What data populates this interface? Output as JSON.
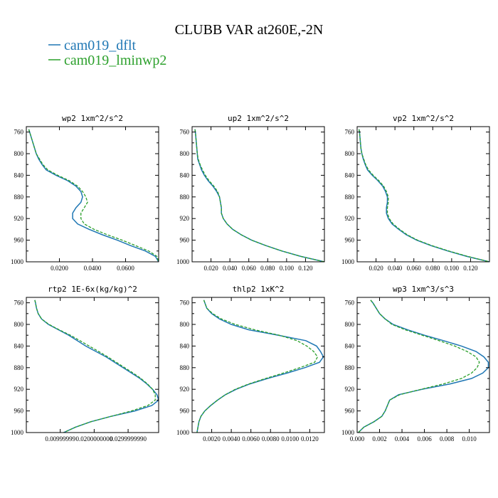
{
  "suptitle": "CLUBB VAR at260E,-2N",
  "legend": [
    {
      "name": "cam019_dflt",
      "color": "#1f77b4",
      "dash": "solid"
    },
    {
      "name": "cam019_lminwp2",
      "color": "#2ca02c",
      "dash": "dashed"
    }
  ],
  "chart_data": [
    {
      "type": "line",
      "title": "wp2   1xm^2/s^2",
      "ylim": [
        1000,
        750
      ],
      "yticks": [
        760,
        800,
        840,
        880,
        920,
        960,
        1000
      ],
      "xlim": [
        0,
        0.08
      ],
      "xticks": [
        0.02,
        0.04,
        0.06
      ],
      "xtick_labels": [
        "0.0200",
        "0.0400",
        "0.0600"
      ],
      "y": [
        755,
        760,
        770,
        780,
        790,
        800,
        810,
        820,
        830,
        840,
        850,
        860,
        870,
        880,
        890,
        900,
        910,
        920,
        930,
        940,
        950,
        960,
        970,
        980,
        990,
        1000
      ],
      "series": [
        {
          "name": "cam019_dflt",
          "values": [
            0.0015,
            0.002,
            0.003,
            0.004,
            0.005,
            0.006,
            0.0075,
            0.0095,
            0.012,
            0.018,
            0.025,
            0.03,
            0.033,
            0.034,
            0.033,
            0.03,
            0.028,
            0.028,
            0.031,
            0.038,
            0.046,
            0.055,
            0.063,
            0.072,
            0.078,
            0.08
          ]
        },
        {
          "name": "cam019_lminwp2",
          "values": [
            0.0015,
            0.002,
            0.003,
            0.004,
            0.005,
            0.006,
            0.008,
            0.01,
            0.013,
            0.019,
            0.026,
            0.031,
            0.034,
            0.036,
            0.037,
            0.035,
            0.033,
            0.033,
            0.035,
            0.041,
            0.049,
            0.058,
            0.066,
            0.074,
            0.079,
            0.08
          ]
        }
      ]
    },
    {
      "type": "line",
      "title": "up2   1xm^2/s^2",
      "ylim": [
        1000,
        750
      ],
      "yticks": [
        760,
        800,
        840,
        880,
        920,
        960,
        1000
      ],
      "xlim": [
        0,
        0.14
      ],
      "xticks": [
        0.02,
        0.04,
        0.06,
        0.08,
        0.1,
        0.12
      ],
      "xtick_labels": [
        "0.020",
        "0.040",
        "0.060",
        "0.080",
        "0.100",
        "0.120"
      ],
      "y": [
        755,
        760,
        770,
        780,
        790,
        800,
        810,
        820,
        830,
        840,
        850,
        860,
        870,
        880,
        890,
        900,
        910,
        920,
        930,
        940,
        950,
        960,
        970,
        980,
        990,
        1000
      ],
      "series": [
        {
          "name": "cam019_dflt",
          "values": [
            0.003,
            0.0035,
            0.004,
            0.0045,
            0.005,
            0.0055,
            0.006,
            0.008,
            0.01,
            0.013,
            0.017,
            0.022,
            0.026,
            0.029,
            0.03,
            0.031,
            0.031,
            0.033,
            0.037,
            0.043,
            0.052,
            0.063,
            0.078,
            0.095,
            0.115,
            0.14
          ]
        },
        {
          "name": "cam019_lminwp2",
          "values": [
            0.003,
            0.0035,
            0.004,
            0.0045,
            0.005,
            0.0055,
            0.0065,
            0.0085,
            0.011,
            0.014,
            0.018,
            0.023,
            0.027,
            0.029,
            0.03,
            0.031,
            0.031,
            0.033,
            0.037,
            0.043,
            0.052,
            0.063,
            0.078,
            0.095,
            0.115,
            0.14
          ]
        }
      ]
    },
    {
      "type": "line",
      "title": "vp2   1xm^2/s^2",
      "ylim": [
        1000,
        750
      ],
      "yticks": [
        760,
        800,
        840,
        880,
        920,
        960,
        1000
      ],
      "xlim": [
        0,
        0.14
      ],
      "xticks": [
        0.02,
        0.04,
        0.06,
        0.08,
        0.1,
        0.12
      ],
      "xtick_labels": [
        "0.020",
        "0.040",
        "0.060",
        "0.080",
        "0.100",
        "0.120"
      ],
      "y": [
        755,
        760,
        770,
        780,
        790,
        800,
        810,
        820,
        830,
        840,
        850,
        860,
        870,
        880,
        890,
        900,
        910,
        920,
        930,
        940,
        950,
        960,
        970,
        980,
        990,
        1000
      ],
      "series": [
        {
          "name": "cam019_dflt",
          "values": [
            0.002,
            0.0025,
            0.003,
            0.0035,
            0.004,
            0.005,
            0.0065,
            0.0085,
            0.011,
            0.016,
            0.022,
            0.027,
            0.03,
            0.032,
            0.032,
            0.031,
            0.031,
            0.033,
            0.037,
            0.044,
            0.052,
            0.063,
            0.078,
            0.096,
            0.116,
            0.14
          ]
        },
        {
          "name": "cam019_lminwp2",
          "values": [
            0.002,
            0.0025,
            0.003,
            0.0035,
            0.004,
            0.005,
            0.007,
            0.009,
            0.012,
            0.017,
            0.023,
            0.028,
            0.031,
            0.033,
            0.033,
            0.032,
            0.032,
            0.034,
            0.038,
            0.045,
            0.053,
            0.064,
            0.079,
            0.097,
            0.117,
            0.14
          ]
        }
      ]
    },
    {
      "type": "line",
      "title": "rtp2   1E-6x(kg/kg)^2",
      "ylim": [
        1000,
        750
      ],
      "yticks": [
        760,
        800,
        840,
        880,
        920,
        960,
        1000
      ],
      "xlim": [
        0,
        0.039
      ],
      "xticks": [
        0.01,
        0.02,
        0.03
      ],
      "xtick_labels": [
        "0.00999999",
        "0.0200000000",
        "0.0299999990"
      ],
      "y": [
        755,
        760,
        770,
        780,
        790,
        800,
        810,
        820,
        830,
        840,
        850,
        860,
        870,
        880,
        890,
        900,
        910,
        920,
        930,
        940,
        950,
        960,
        970,
        980,
        990,
        1000
      ],
      "series": [
        {
          "name": "cam019_dflt",
          "values": [
            0.0025,
            0.0027,
            0.003,
            0.0035,
            0.0045,
            0.0065,
            0.0095,
            0.0125,
            0.015,
            0.0175,
            0.0205,
            0.0235,
            0.026,
            0.0285,
            0.031,
            0.0335,
            0.0355,
            0.0372,
            0.0385,
            0.039,
            0.037,
            0.032,
            0.025,
            0.019,
            0.0145,
            0.011
          ]
        },
        {
          "name": "cam019_lminwp2",
          "values": [
            0.0025,
            0.0027,
            0.003,
            0.0035,
            0.0045,
            0.0067,
            0.0097,
            0.013,
            0.0158,
            0.0185,
            0.0213,
            0.024,
            0.0265,
            0.029,
            0.0315,
            0.0338,
            0.0357,
            0.0372,
            0.038,
            0.038,
            0.0358,
            0.031,
            0.025,
            0.019,
            0.0145,
            0.011
          ]
        }
      ]
    },
    {
      "type": "line",
      "title": "thlp2   1xK^2",
      "ylim": [
        1000,
        750
      ],
      "yticks": [
        760,
        800,
        840,
        880,
        920,
        960,
        1000
      ],
      "xlim": [
        0,
        0.0135
      ],
      "xticks": [
        0.002,
        0.004,
        0.006,
        0.008,
        0.01,
        0.012
      ],
      "xtick_labels": [
        "0.0020",
        "0.0040",
        "0.0060",
        "0.0080",
        "0.0100",
        "0.0120"
      ],
      "y": [
        755,
        760,
        770,
        780,
        790,
        800,
        810,
        820,
        830,
        840,
        850,
        860,
        870,
        880,
        890,
        900,
        910,
        920,
        930,
        940,
        950,
        960,
        970,
        980,
        990,
        1000
      ],
      "series": [
        {
          "name": "cam019_dflt",
          "values": [
            0.0012,
            0.0013,
            0.0015,
            0.002,
            0.0028,
            0.004,
            0.0058,
            0.0088,
            0.0116,
            0.0127,
            0.0131,
            0.0134,
            0.013,
            0.0115,
            0.0097,
            0.0077,
            0.0059,
            0.0045,
            0.0034,
            0.0026,
            0.0019,
            0.0013,
            0.0009,
            0.0007,
            0.0006,
            0.0005
          ]
        },
        {
          "name": "cam019_lminwp2",
          "values": [
            0.0012,
            0.0013,
            0.0015,
            0.0021,
            0.003,
            0.0044,
            0.0064,
            0.0089,
            0.0107,
            0.0117,
            0.0124,
            0.0128,
            0.0125,
            0.011,
            0.0093,
            0.0075,
            0.0058,
            0.0044,
            0.0034,
            0.0026,
            0.0019,
            0.0013,
            0.0009,
            0.0007,
            0.0006,
            0.0005
          ]
        }
      ]
    },
    {
      "type": "line",
      "title": "wp3   1xm^3/s^3",
      "ylim": [
        1000,
        750
      ],
      "yticks": [
        760,
        800,
        840,
        880,
        920,
        960,
        1000
      ],
      "xlim": [
        0,
        0.0118
      ],
      "xticks": [
        0.0,
        0.002,
        0.004,
        0.006,
        0.008,
        0.01
      ],
      "xtick_labels": [
        "0.000",
        "0.002",
        "0.004",
        "0.006",
        "0.008",
        "0.010"
      ],
      "y": [
        755,
        760,
        770,
        780,
        790,
        800,
        810,
        820,
        830,
        840,
        850,
        860,
        870,
        880,
        890,
        900,
        910,
        920,
        930,
        940,
        950,
        960,
        970,
        980,
        990,
        1000
      ],
      "series": [
        {
          "name": "cam019_dflt",
          "values": [
            0.0012,
            0.0014,
            0.0017,
            0.002,
            0.0025,
            0.0032,
            0.0045,
            0.006,
            0.0077,
            0.0093,
            0.0106,
            0.0113,
            0.0117,
            0.0117,
            0.0112,
            0.0102,
            0.0083,
            0.0058,
            0.0037,
            0.0029,
            0.0027,
            0.0025,
            0.0022,
            0.0015,
            0.0006,
            0.0001
          ]
        },
        {
          "name": "cam019_lminwp2",
          "values": [
            0.0012,
            0.0014,
            0.0017,
            0.002,
            0.0025,
            0.0031,
            0.0043,
            0.0058,
            0.0073,
            0.0087,
            0.0098,
            0.0106,
            0.0109,
            0.0107,
            0.0102,
            0.0093,
            0.0077,
            0.0057,
            0.0038,
            0.0029,
            0.0027,
            0.0025,
            0.0022,
            0.0015,
            0.0006,
            0.0001
          ]
        }
      ]
    }
  ]
}
